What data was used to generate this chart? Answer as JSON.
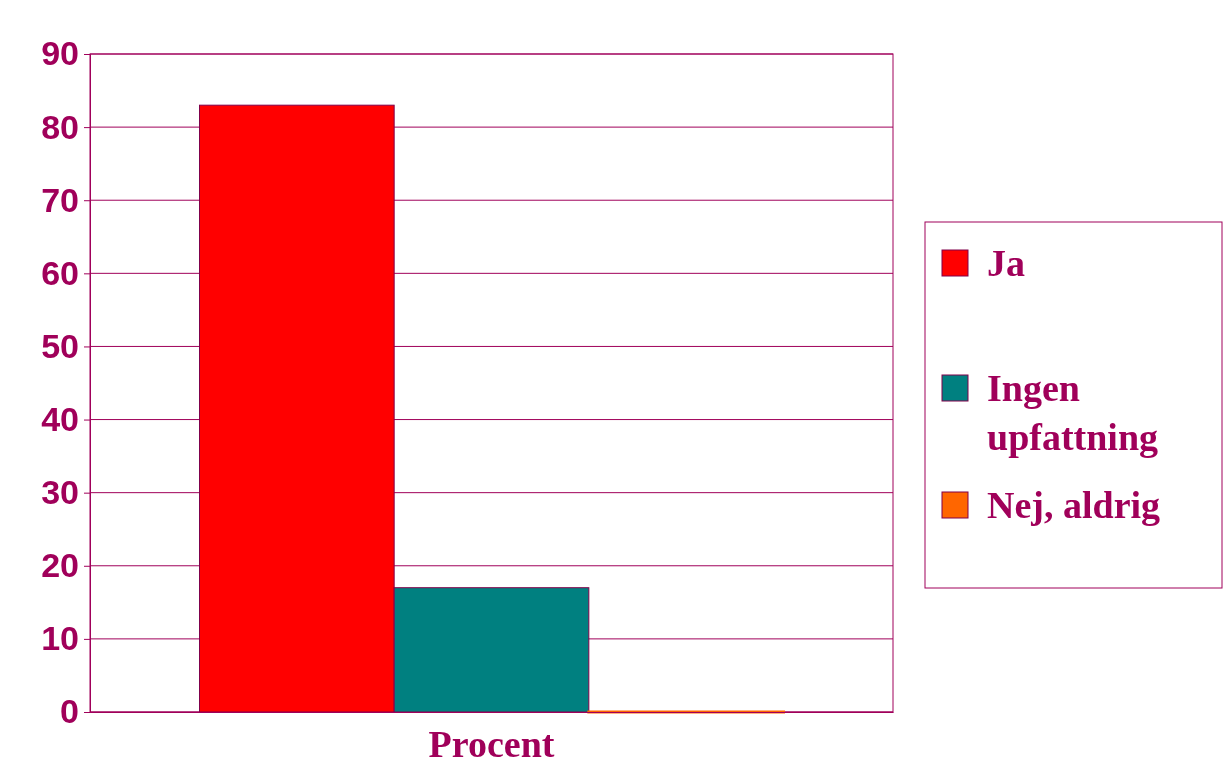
{
  "chart_data": {
    "type": "bar",
    "categories": [
      "Procent"
    ],
    "series": [
      {
        "name": "Ja",
        "color": "#ff0000",
        "values": [
          83
        ]
      },
      {
        "name": "Ingen upfattning",
        "color": "#008080",
        "values": [
          17
        ]
      },
      {
        "name": "Nej, aldrig",
        "color": "#ff6600",
        "values": [
          0
        ]
      }
    ],
    "ylim": [
      0,
      90
    ],
    "yticks": [
      0,
      10,
      20,
      30,
      40,
      50,
      60,
      70,
      80,
      90
    ],
    "grid": "y",
    "legend": "right"
  }
}
